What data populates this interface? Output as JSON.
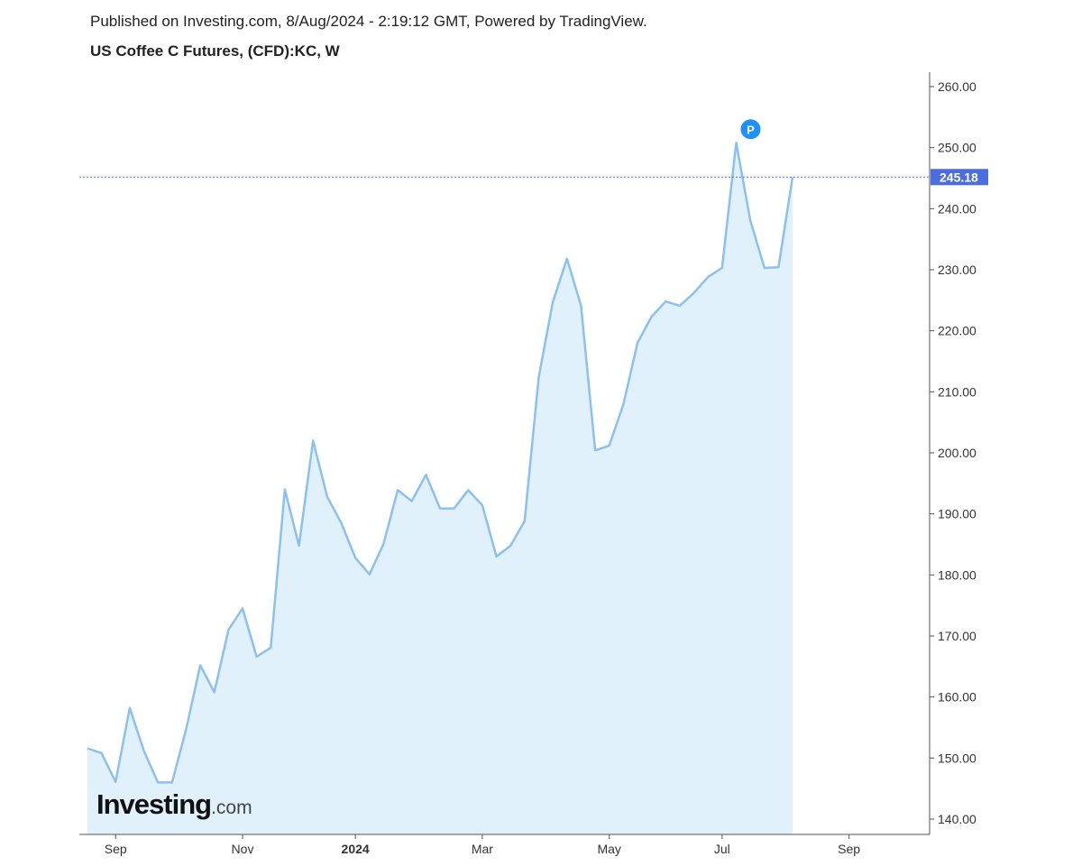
{
  "header": {
    "published": "Published on Investing.com, 8/Aug/2024 - 2:19:12 GMT, Powered by TradingView.",
    "title": "US Coffee C Futures, (CFD):KC, W"
  },
  "logo": {
    "name": "Investing",
    "suffix": ".com"
  },
  "colors": {
    "line": "#8cc0f0",
    "fill": "#e1f1fb",
    "last_price_label": "#4a6ee0",
    "marker": "#1e90ff",
    "axis": "#555555"
  },
  "chart_data": {
    "type": "area",
    "title": "US Coffee C Futures, (CFD):KC, W",
    "xlabel": "",
    "ylabel": "",
    "xlim": [
      "2023-08-17",
      "2024-10-12"
    ],
    "ylim": [
      137.5,
      262.5
    ],
    "grid": false,
    "y_axis_position": "right",
    "y_ticks": [
      "140.00",
      "150.00",
      "160.00",
      "170.00",
      "180.00",
      "190.00",
      "200.00",
      "210.00",
      "220.00",
      "230.00",
      "240.00",
      "250.00",
      "260.00"
    ],
    "x_ticks": [
      {
        "date": "2023-09-04",
        "label": "Sep"
      },
      {
        "date": "2023-11-06",
        "label": "Nov"
      },
      {
        "date": "2024-01-01",
        "label": "2024"
      },
      {
        "date": "2024-03-04",
        "label": "Mar"
      },
      {
        "date": "2024-05-06",
        "label": "May"
      },
      {
        "date": "2024-07-01",
        "label": "Jul"
      },
      {
        "date": "2024-09-02",
        "label": "Sep"
      }
    ],
    "x": [
      "2023-08-21",
      "2023-08-28",
      "2023-09-04",
      "2023-09-11",
      "2023-09-18",
      "2023-09-25",
      "2023-10-02",
      "2023-10-09",
      "2023-10-16",
      "2023-10-23",
      "2023-10-30",
      "2023-11-06",
      "2023-11-13",
      "2023-11-20",
      "2023-11-27",
      "2023-12-04",
      "2023-12-11",
      "2023-12-18",
      "2023-12-25",
      "2024-01-01",
      "2024-01-08",
      "2024-01-15",
      "2024-01-22",
      "2024-01-29",
      "2024-02-05",
      "2024-02-12",
      "2024-02-19",
      "2024-02-26",
      "2024-03-04",
      "2024-03-11",
      "2024-03-18",
      "2024-03-25",
      "2024-04-01",
      "2024-04-08",
      "2024-04-15",
      "2024-04-22",
      "2024-04-29",
      "2024-05-06",
      "2024-05-13",
      "2024-05-20",
      "2024-05-27",
      "2024-06-03",
      "2024-06-10",
      "2024-06-17",
      "2024-06-24",
      "2024-07-01",
      "2024-07-08",
      "2024-07-15",
      "2024-07-22",
      "2024-07-29",
      "2024-08-05"
    ],
    "values": [
      151.6,
      150.8,
      146.1,
      158.2,
      151.2,
      146.0,
      146.0,
      154.7,
      165.2,
      160.8,
      171.0,
      174.5,
      166.6,
      168.1,
      194.0,
      184.8,
      202.0,
      192.8,
      188.5,
      182.8,
      180.1,
      185.1,
      193.9,
      192.1,
      196.4,
      190.9,
      190.9,
      193.9,
      191.4,
      183.0,
      184.8,
      188.8,
      212.4,
      224.7,
      231.8,
      224.1,
      200.4,
      201.2,
      207.9,
      218.0,
      222.3,
      224.8,
      224.1,
      226.2,
      228.8,
      230.3,
      250.8,
      238.1,
      230.3,
      230.4,
      245.18
    ],
    "last_price": {
      "value": 245.18,
      "label": "245.18"
    },
    "annotations": [
      {
        "date": "2024-07-08",
        "label": "P"
      }
    ]
  }
}
